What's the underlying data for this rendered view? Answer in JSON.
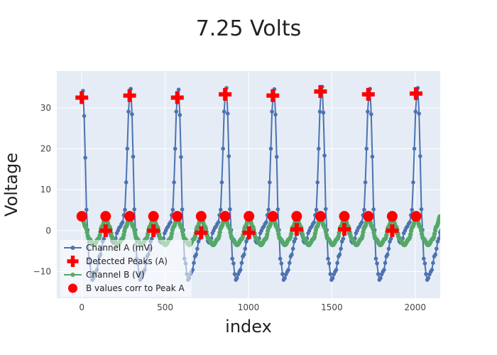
{
  "chart_data": {
    "type": "line",
    "title": "7.25 Volts",
    "xlabel": "index",
    "ylabel": "Voltage",
    "xlim": [
      -150,
      2150
    ],
    "ylim": [
      -16.5,
      39
    ],
    "xticks": [
      0,
      500,
      1000,
      1500,
      2000
    ],
    "xtick_labels": [
      "0",
      "500",
      "1000",
      "1500",
      "2000"
    ],
    "yticks": [
      -10,
      0,
      10,
      20,
      30
    ],
    "ytick_labels": [
      "−10",
      "0",
      "10",
      "20",
      "30"
    ],
    "grid": true,
    "legend_position": "bottom-left",
    "colors": {
      "plot_bg": "#e5ecf6",
      "channel_a": "#4c72b0",
      "channel_b": "#55a868",
      "peaks": "#ff0000",
      "b_markers": "#ff0000",
      "grid": "#ffffff"
    },
    "series": [
      {
        "name": "Channel A (mV)",
        "kind": "line+markers",
        "cycle_period": 287,
        "cycle_start": 0,
        "cycle_count": 8,
        "cycle_shape": {
          "phase": [
            0,
            0.02,
            0.05,
            0.1,
            0.15,
            0.22,
            0.3,
            0.38,
            0.46,
            0.5,
            0.55,
            0.6,
            0.65,
            0.7,
            0.75,
            0.8,
            0.85,
            0.9,
            0.93,
            0.96,
            0.98,
            1.0
          ],
          "value": [
            33,
            34.5,
            28,
            5,
            -7,
            -12,
            -10,
            -6,
            -2,
            0,
            1,
            -1,
            -3,
            -2,
            0,
            1,
            2,
            5,
            12,
            22,
            30,
            33
          ]
        },
        "peak_values": [
          34.5,
          35,
          34.8,
          35.2,
          34.9,
          35.5,
          35,
          35.2
        ]
      },
      {
        "name": "Detected Peaks (A)",
        "kind": "markers",
        "symbol": "cross",
        "x": [
          0,
          143,
          287,
          430,
          573,
          716,
          860,
          1003,
          1146,
          1289,
          1432,
          1575,
          1719,
          1862,
          2005
        ],
        "y": [
          32.5,
          0,
          33,
          0,
          32.5,
          -0.5,
          33.3,
          -0.5,
          33,
          0.3,
          34,
          0.3,
          33.3,
          0,
          33.5
        ]
      },
      {
        "name": "Channel B (V)",
        "kind": "line+markers",
        "cycle_period": 143.3,
        "cycle_start": 0,
        "cycle_count": 15,
        "cycle_shape": {
          "phase": [
            0,
            0.15,
            0.3,
            0.5,
            0.7,
            0.85,
            1.0
          ],
          "value": [
            3.5,
            1,
            -2,
            -3.5,
            -2,
            1,
            3.5
          ]
        }
      },
      {
        "name": "B values corr to Peak A",
        "kind": "markers",
        "symbol": "circle",
        "x": [
          0,
          143,
          287,
          430,
          573,
          716,
          860,
          1003,
          1146,
          1289,
          1432,
          1575,
          1719,
          1862,
          2005
        ],
        "y": [
          3.5,
          3.5,
          3.5,
          3.5,
          3.5,
          3.5,
          3.5,
          3.5,
          3.5,
          3.5,
          3.5,
          3.5,
          3.5,
          3.5,
          3.5
        ]
      }
    ],
    "legend": [
      {
        "label": "Channel A (mV)",
        "symbol": "line-marker",
        "color": "#4c72b0"
      },
      {
        "label": "Detected Peaks (A)",
        "symbol": "cross",
        "color": "#ff0000"
      },
      {
        "label": "Channel B (V)",
        "symbol": "line-marker",
        "color": "#55a868"
      },
      {
        "label": "B values corr to Peak A",
        "symbol": "circle",
        "color": "#ff0000"
      }
    ]
  }
}
